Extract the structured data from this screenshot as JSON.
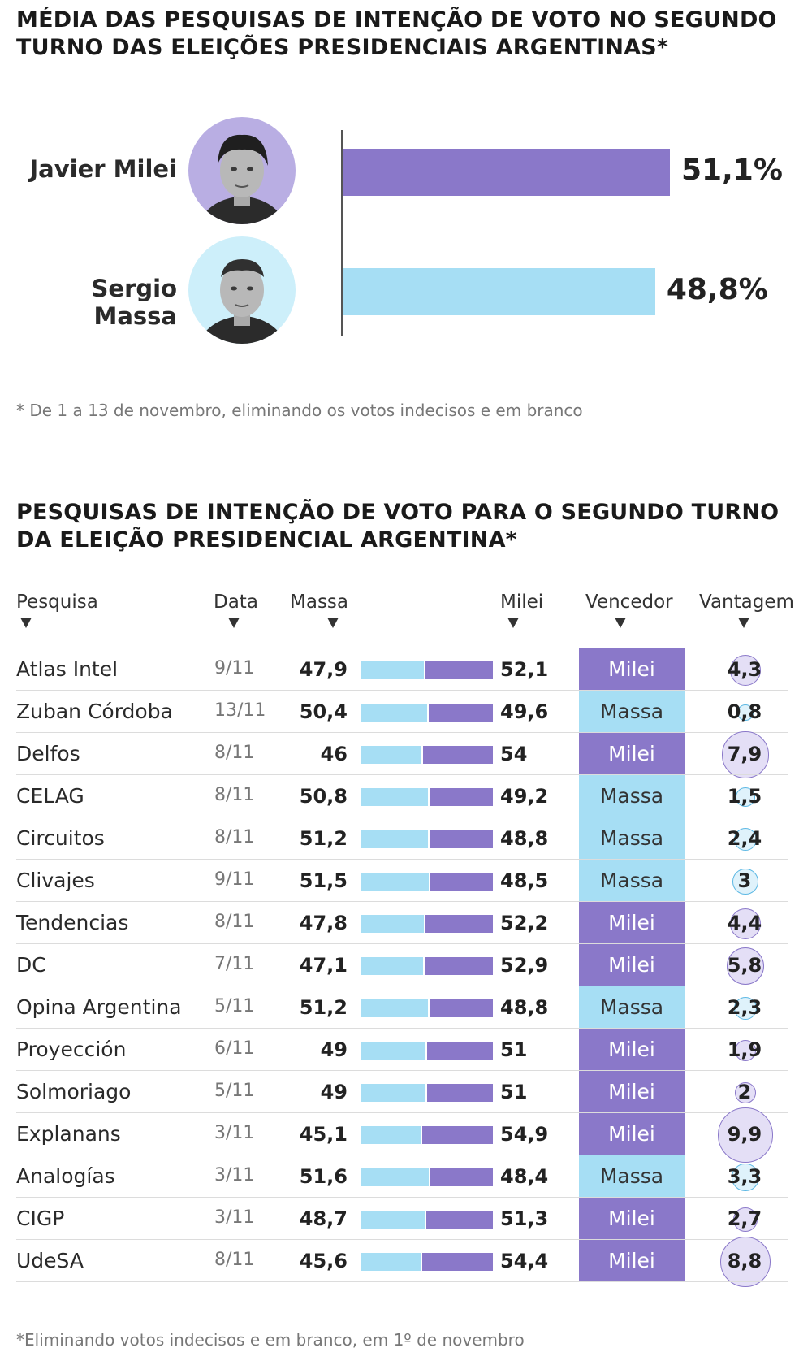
{
  "top": {
    "title": "MÉDIA DAS PESQUISAS DE INTENÇÃO DE VOTO NO SEGUNDO TURNO DAS ELEIÇÕES PRESIDENCIAIS ARGENTINAS*",
    "note": "* De 1 a 13 de novembro, eliminando os votos indecisos e em branco"
  },
  "table": {
    "title": "PESQUISAS DE INTENÇÃO DE VOTO PARA O SEGUNDO TURNO DA ELEIÇÃO PRESIDENCIAL ARGENTINA*",
    "headers": {
      "pesquisa": "Pesquisa",
      "data": "Data",
      "massa": "Massa",
      "milei": "Milei",
      "vencedor": "Vencedor",
      "vantagem": "Vantagem"
    },
    "note": "*Eliminando votos indecisos e em branco, em 1º de novembro"
  },
  "colors": {
    "milei": "#8a78c9",
    "massa": "#a6def4"
  },
  "chart_data": [
    {
      "type": "bar",
      "orientation": "horizontal",
      "categories": [
        "Javier Milei",
        "Sergio Massa"
      ],
      "values": [
        51.1,
        48.8
      ],
      "value_labels": [
        "51,1%",
        "48,8%"
      ],
      "colors": [
        "#8a78c9",
        "#a6def4"
      ],
      "unit": "%"
    },
    {
      "type": "table",
      "rows": [
        {
          "pesquisa": "Atlas Intel",
          "data": "9/11",
          "massa": "47,9",
          "milei": "52,1",
          "massa_value": 47.9,
          "milei_value": 52.1,
          "vencedor": "Milei",
          "vantagem": "4,3",
          "vantagem_value": 4.3
        },
        {
          "pesquisa": "Zuban Córdoba",
          "data": "13/11",
          "massa": "50,4",
          "milei": "49,6",
          "massa_value": 50.4,
          "milei_value": 49.6,
          "vencedor": "Massa",
          "vantagem": "0,8",
          "vantagem_value": 0.8
        },
        {
          "pesquisa": "Delfos",
          "data": "8/11",
          "massa": "46",
          "milei": "54",
          "massa_value": 46,
          "milei_value": 54,
          "vencedor": "Milei",
          "vantagem": "7,9",
          "vantagem_value": 7.9
        },
        {
          "pesquisa": "CELAG",
          "data": "8/11",
          "massa": "50,8",
          "milei": "49,2",
          "massa_value": 50.8,
          "milei_value": 49.2,
          "vencedor": "Massa",
          "vantagem": "1,5",
          "vantagem_value": 1.5
        },
        {
          "pesquisa": "Circuitos",
          "data": "8/11",
          "massa": "51,2",
          "milei": "48,8",
          "massa_value": 51.2,
          "milei_value": 48.8,
          "vencedor": "Massa",
          "vantagem": "2,4",
          "vantagem_value": 2.4
        },
        {
          "pesquisa": "Clivajes",
          "data": "9/11",
          "massa": "51,5",
          "milei": "48,5",
          "massa_value": 51.5,
          "milei_value": 48.5,
          "vencedor": "Massa",
          "vantagem": "3",
          "vantagem_value": 3
        },
        {
          "pesquisa": "Tendencias",
          "data": "8/11",
          "massa": "47,8",
          "milei": "52,2",
          "massa_value": 47.8,
          "milei_value": 52.2,
          "vencedor": "Milei",
          "vantagem": "4,4",
          "vantagem_value": 4.4
        },
        {
          "pesquisa": "DC",
          "data": "7/11",
          "massa": "47,1",
          "milei": "52,9",
          "massa_value": 47.1,
          "milei_value": 52.9,
          "vencedor": "Milei",
          "vantagem": "5,8",
          "vantagem_value": 5.8
        },
        {
          "pesquisa": "Opina Argentina",
          "data": "5/11",
          "massa": "51,2",
          "milei": "48,8",
          "massa_value": 51.2,
          "milei_value": 48.8,
          "vencedor": "Massa",
          "vantagem": "2,3",
          "vantagem_value": 2.3
        },
        {
          "pesquisa": "Proyección",
          "data": "6/11",
          "massa": "49",
          "milei": "51",
          "massa_value": 49,
          "milei_value": 51,
          "vencedor": "Milei",
          "vantagem": "1,9",
          "vantagem_value": 1.9
        },
        {
          "pesquisa": "Solmoriago",
          "data": "5/11",
          "massa": "49",
          "milei": "51",
          "massa_value": 49,
          "milei_value": 51,
          "vencedor": "Milei",
          "vantagem": "2",
          "vantagem_value": 2
        },
        {
          "pesquisa": "Explanans",
          "data": "3/11",
          "massa": "45,1",
          "milei": "54,9",
          "massa_value": 45.1,
          "milei_value": 54.9,
          "vencedor": "Milei",
          "vantagem": "9,9",
          "vantagem_value": 9.9
        },
        {
          "pesquisa": "Analogías",
          "data": "3/11",
          "massa": "51,6",
          "milei": "48,4",
          "massa_value": 51.6,
          "milei_value": 48.4,
          "vencedor": "Massa",
          "vantagem": "3,3",
          "vantagem_value": 3.3
        },
        {
          "pesquisa": "CIGP",
          "data": "3/11",
          "massa": "48,7",
          "milei": "51,3",
          "massa_value": 48.7,
          "milei_value": 51.3,
          "vencedor": "Milei",
          "vantagem": "2,7",
          "vantagem_value": 2.7
        },
        {
          "pesquisa": "UdeSA",
          "data": "8/11",
          "massa": "45,6",
          "milei": "54,4",
          "massa_value": 45.6,
          "milei_value": 54.4,
          "vencedor": "Milei",
          "vantagem": "8,8",
          "vantagem_value": 8.8
        }
      ]
    }
  ]
}
